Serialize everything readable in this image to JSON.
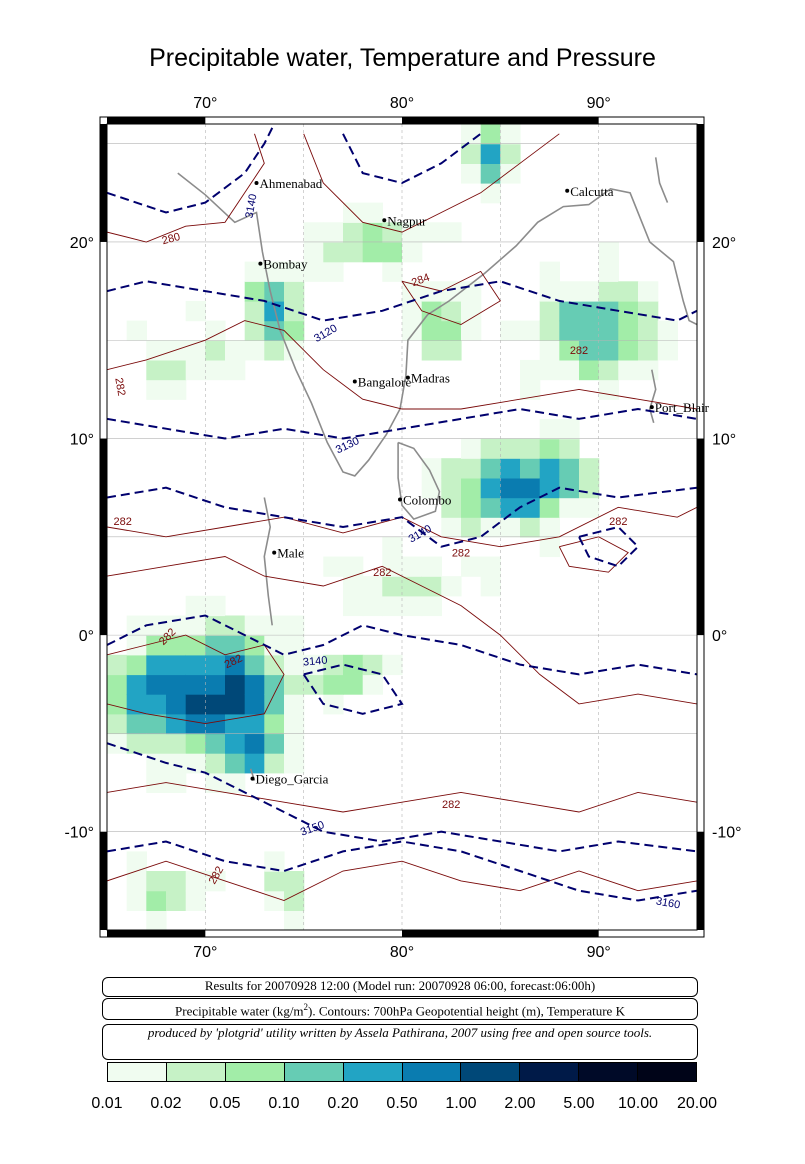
{
  "title": "Precipitable water, Temperature and Pressure",
  "map": {
    "lon_range": [
      65,
      95
    ],
    "lat_range": [
      -15,
      26
    ],
    "lon_ticks": [
      {
        "value": 70,
        "label": "70°"
      },
      {
        "value": 80,
        "label": "80°"
      },
      {
        "value": 90,
        "label": "90°"
      }
    ],
    "lat_ticks": [
      {
        "value": 20,
        "label": "20°"
      },
      {
        "value": 10,
        "label": "10°"
      },
      {
        "value": 0,
        "label": "0°"
      },
      {
        "value": -10,
        "label": "-10°"
      }
    ],
    "cities": [
      {
        "name": "Ahmenabad",
        "lon": 72.6,
        "lat": 23.0
      },
      {
        "name": "Nagpur",
        "lon": 79.1,
        "lat": 21.1
      },
      {
        "name": "Calcutta",
        "lon": 88.4,
        "lat": 22.6
      },
      {
        "name": "Bombay",
        "lon": 72.8,
        "lat": 18.9
      },
      {
        "name": "Bangalore",
        "lon": 77.6,
        "lat": 12.9
      },
      {
        "name": "Madras",
        "lon": 80.3,
        "lat": 13.1
      },
      {
        "name": "Port_Blair",
        "lon": 92.7,
        "lat": 11.6
      },
      {
        "name": "Colombo",
        "lon": 79.9,
        "lat": 6.9
      },
      {
        "name": "Male",
        "lon": 73.5,
        "lat": 4.2
      },
      {
        "name": "Diego_Garcia",
        "lon": 72.4,
        "lat": -7.3
      }
    ],
    "geopotential_contour_labels": [
      "3140",
      "3120",
      "3130",
      "3140",
      "3140",
      "3150",
      "3160"
    ],
    "temperature_contour_labels": [
      "280",
      "284",
      "282",
      "282",
      "282",
      "282",
      "282",
      "282",
      "282",
      "282",
      "282",
      "282"
    ]
  },
  "info": {
    "results": "Results for 20070928 12:00 (Model run: 20070928 06:00, forecast:06:00h)",
    "variable_prefix": "Precipitable water (kg/m",
    "variable_sup": "2",
    "variable_suffix": ").  Contours: 700hPa Geopotential height (m), Temperature K",
    "credit": "produced by 'plotgrid' utility written by Assela Pathirana, 2007 using free and open source tools."
  },
  "legend": {
    "colors": [
      "#f0fcf0",
      "#c6f2c6",
      "#a2eda8",
      "#66ccb4",
      "#22a4c4",
      "#0a7cb0",
      "#004878",
      "#001a48",
      "#000a28",
      "#000418"
    ],
    "labels": [
      "0.01",
      "0.02",
      "0.05",
      "0.10",
      "0.20",
      "0.50",
      "1.00",
      "2.00",
      "5.00",
      "10.00",
      "20.00"
    ]
  }
}
